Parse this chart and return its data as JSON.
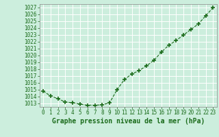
{
  "x": [
    0,
    1,
    2,
    3,
    4,
    5,
    6,
    7,
    8,
    9,
    10,
    11,
    12,
    13,
    14,
    15,
    16,
    17,
    18,
    19,
    20,
    21,
    22,
    23
  ],
  "y": [
    1014.8,
    1014.1,
    1013.7,
    1013.2,
    1013.1,
    1012.9,
    1012.75,
    1012.75,
    1012.8,
    1013.1,
    1015.0,
    1016.5,
    1017.3,
    1017.8,
    1018.5,
    1019.3,
    1020.5,
    1021.5,
    1022.2,
    1023.0,
    1023.8,
    1024.6,
    1025.8,
    1027.0
  ],
  "line_color": "#1a6b1a",
  "marker": "+",
  "marker_size": 4,
  "line_width": 0.8,
  "xlabel": "Graphe pression niveau de la mer (hPa)",
  "ylim": [
    1012.5,
    1027.5
  ],
  "xlim": [
    -0.5,
    23.5
  ],
  "ytick_min": 1013,
  "ytick_max": 1027,
  "ytick_step": 1,
  "bg_color": "#cceedd",
  "grid_color": "#ffffff",
  "grid_color2": "#bbddcc",
  "xlabel_fontsize": 7,
  "tick_fontsize": 5.5
}
